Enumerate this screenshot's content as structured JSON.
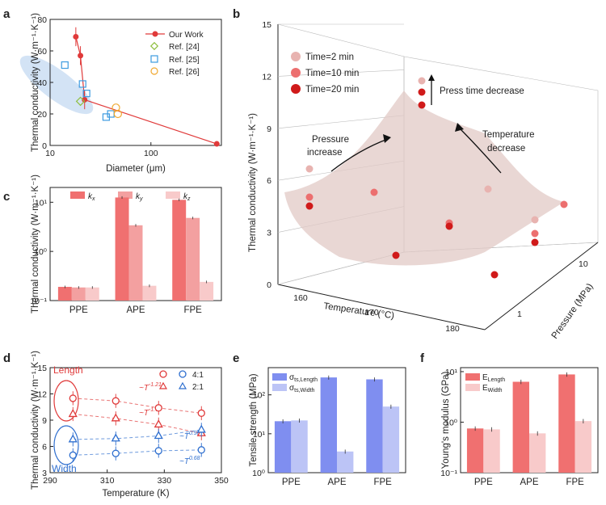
{
  "panel_labels": {
    "a": "a",
    "b": "b",
    "c": "c",
    "d": "d",
    "e": "e",
    "f": "f"
  },
  "colors": {
    "red": "#e03a3a",
    "bar_red": "#f07070",
    "bar_mid": "#f3a0a0",
    "bar_light": "#f8caca",
    "green": "#8fbf3f",
    "blue": "#3d9be0",
    "orange": "#f0a830",
    "blue_bar": "#7f8ef0",
    "blue_bar_light": "#bcc4f6",
    "blue_dark": "#2f6fcf"
  },
  "chart_data": [
    {
      "id": "a",
      "type": "scatter",
      "ylabel": "Thermal conductivity (W·m⁻¹·K⁻¹)",
      "xlabel": "Diameter (μm)",
      "xscale": "log",
      "xlim": [
        10,
        500
      ],
      "ylim": [
        0,
        80
      ],
      "xticks": [
        "10",
        "100"
      ],
      "yticks": [
        "0",
        "20",
        "40",
        "60",
        "80"
      ],
      "legend": [
        "Our Work",
        "Ref. [24]",
        "Ref. [25]",
        "Ref. [26]"
      ],
      "series": [
        {
          "name": "Our Work",
          "x": [
            18,
            20,
            22,
            450
          ],
          "y": [
            69,
            57,
            29,
            1
          ]
        },
        {
          "name": "Ref. [24]",
          "x": [
            20
          ],
          "y": [
            28
          ]
        },
        {
          "name": "Ref. [25]",
          "x": [
            14,
            21,
            23,
            36,
            40
          ],
          "y": [
            51,
            39,
            33,
            18,
            20
          ]
        },
        {
          "name": "Ref. [26]",
          "x": [
            45,
            47
          ],
          "y": [
            24,
            20
          ]
        }
      ]
    },
    {
      "id": "b",
      "type": "scatter3d",
      "zlabel": "Thermal conductivity (W·m⁻¹·K⁻¹)",
      "xlabel": "Temperature (°C)",
      "ylabel": "Pressure (MPa)",
      "zticks": [
        "0",
        "3",
        "6",
        "9",
        "12",
        "15"
      ],
      "xticks": [
        "160",
        "170",
        "180"
      ],
      "yticks": [
        "1",
        "10"
      ],
      "legend": [
        "Time=2 min",
        "Time=10 min",
        "Time=20 min"
      ],
      "annotations": [
        "Press time decrease",
        "Pressure",
        "increase",
        "Temperature",
        "decrease"
      ]
    },
    {
      "id": "c",
      "type": "bar",
      "ylabel": "Thermal conductivity (W·m⁻¹·K⁻¹)",
      "yscale": "log",
      "ylim": [
        0.1,
        20
      ],
      "categories": [
        "PPE",
        "APE",
        "FPE"
      ],
      "yticks": [
        "10⁻¹",
        "10⁰",
        "10¹"
      ],
      "legend": [
        "k",
        "k",
        "k"
      ],
      "legend_sub": [
        "x",
        "y",
        "z"
      ],
      "series": [
        {
          "name": "kx",
          "values": [
            0.19,
            12.5,
            11.2
          ]
        },
        {
          "name": "ky",
          "values": [
            0.185,
            3.4,
            4.8
          ]
        },
        {
          "name": "kz",
          "values": [
            0.185,
            0.2,
            0.24
          ]
        }
      ]
    },
    {
      "id": "d",
      "type": "scatter",
      "ylabel": "Thermal conductivity (W·m⁻¹·K⁻¹)",
      "xlabel": "Temperature (K)",
      "xlim": [
        290,
        350
      ],
      "ylim": [
        3,
        15
      ],
      "xticks": [
        "290",
        "310",
        "330",
        "350"
      ],
      "yticks": [
        "3",
        "6",
        "9",
        "12",
        "15"
      ],
      "legend": [
        "4:1",
        "2:1"
      ],
      "annotations": [
        "Length",
        "Width",
        "~T",
        "-1.21",
        "~T",
        "-1.67",
        "~T",
        "0.98",
        "~T",
        "0.68"
      ],
      "series": [
        {
          "name": "Length 4:1",
          "x": [
            298,
            313,
            328,
            343
          ],
          "y": [
            11.5,
            11.2,
            10.4,
            9.8
          ]
        },
        {
          "name": "Length 2:1",
          "x": [
            298,
            313,
            328,
            343
          ],
          "y": [
            9.7,
            9.2,
            8.5,
            7.5
          ]
        },
        {
          "name": "Width 2:1",
          "x": [
            298,
            313,
            328,
            343
          ],
          "y": [
            6.8,
            6.9,
            7.2,
            7.9
          ]
        },
        {
          "name": "Width 4:1",
          "x": [
            298,
            313,
            328,
            343
          ],
          "y": [
            5.0,
            5.2,
            5.5,
            5.6
          ]
        }
      ]
    },
    {
      "id": "e",
      "type": "bar",
      "ylabel": "Tensile strength (MPa)",
      "yscale": "log",
      "ylim": [
        1,
        500
      ],
      "categories": [
        "PPE",
        "APE",
        "FPE"
      ],
      "yticks": [
        "10⁰",
        "10¹",
        "10²"
      ],
      "legend": [
        "σ",
        "σ"
      ],
      "legend_sub": [
        "ts,Length",
        "ts,Width"
      ],
      "series": [
        {
          "name": "σts,Length",
          "values": [
            21,
            280,
            250
          ]
        },
        {
          "name": "σts,Width",
          "values": [
            22,
            3.5,
            50
          ]
        }
      ]
    },
    {
      "id": "f",
      "type": "bar",
      "ylabel": "Young's modulus (GPa)",
      "yscale": "log",
      "ylim": [
        0.1,
        12
      ],
      "categories": [
        "PPE",
        "APE",
        "FPE"
      ],
      "yticks": [
        "10⁻¹",
        "10⁰",
        "10¹"
      ],
      "legend": [
        "E",
        "E"
      ],
      "legend_sub": [
        "Length",
        "Width"
      ],
      "series": [
        {
          "name": "ELength",
          "values": [
            0.75,
            6.3,
            8.8
          ]
        },
        {
          "name": "EWidth",
          "values": [
            0.72,
            0.6,
            1.05
          ]
        }
      ]
    }
  ]
}
